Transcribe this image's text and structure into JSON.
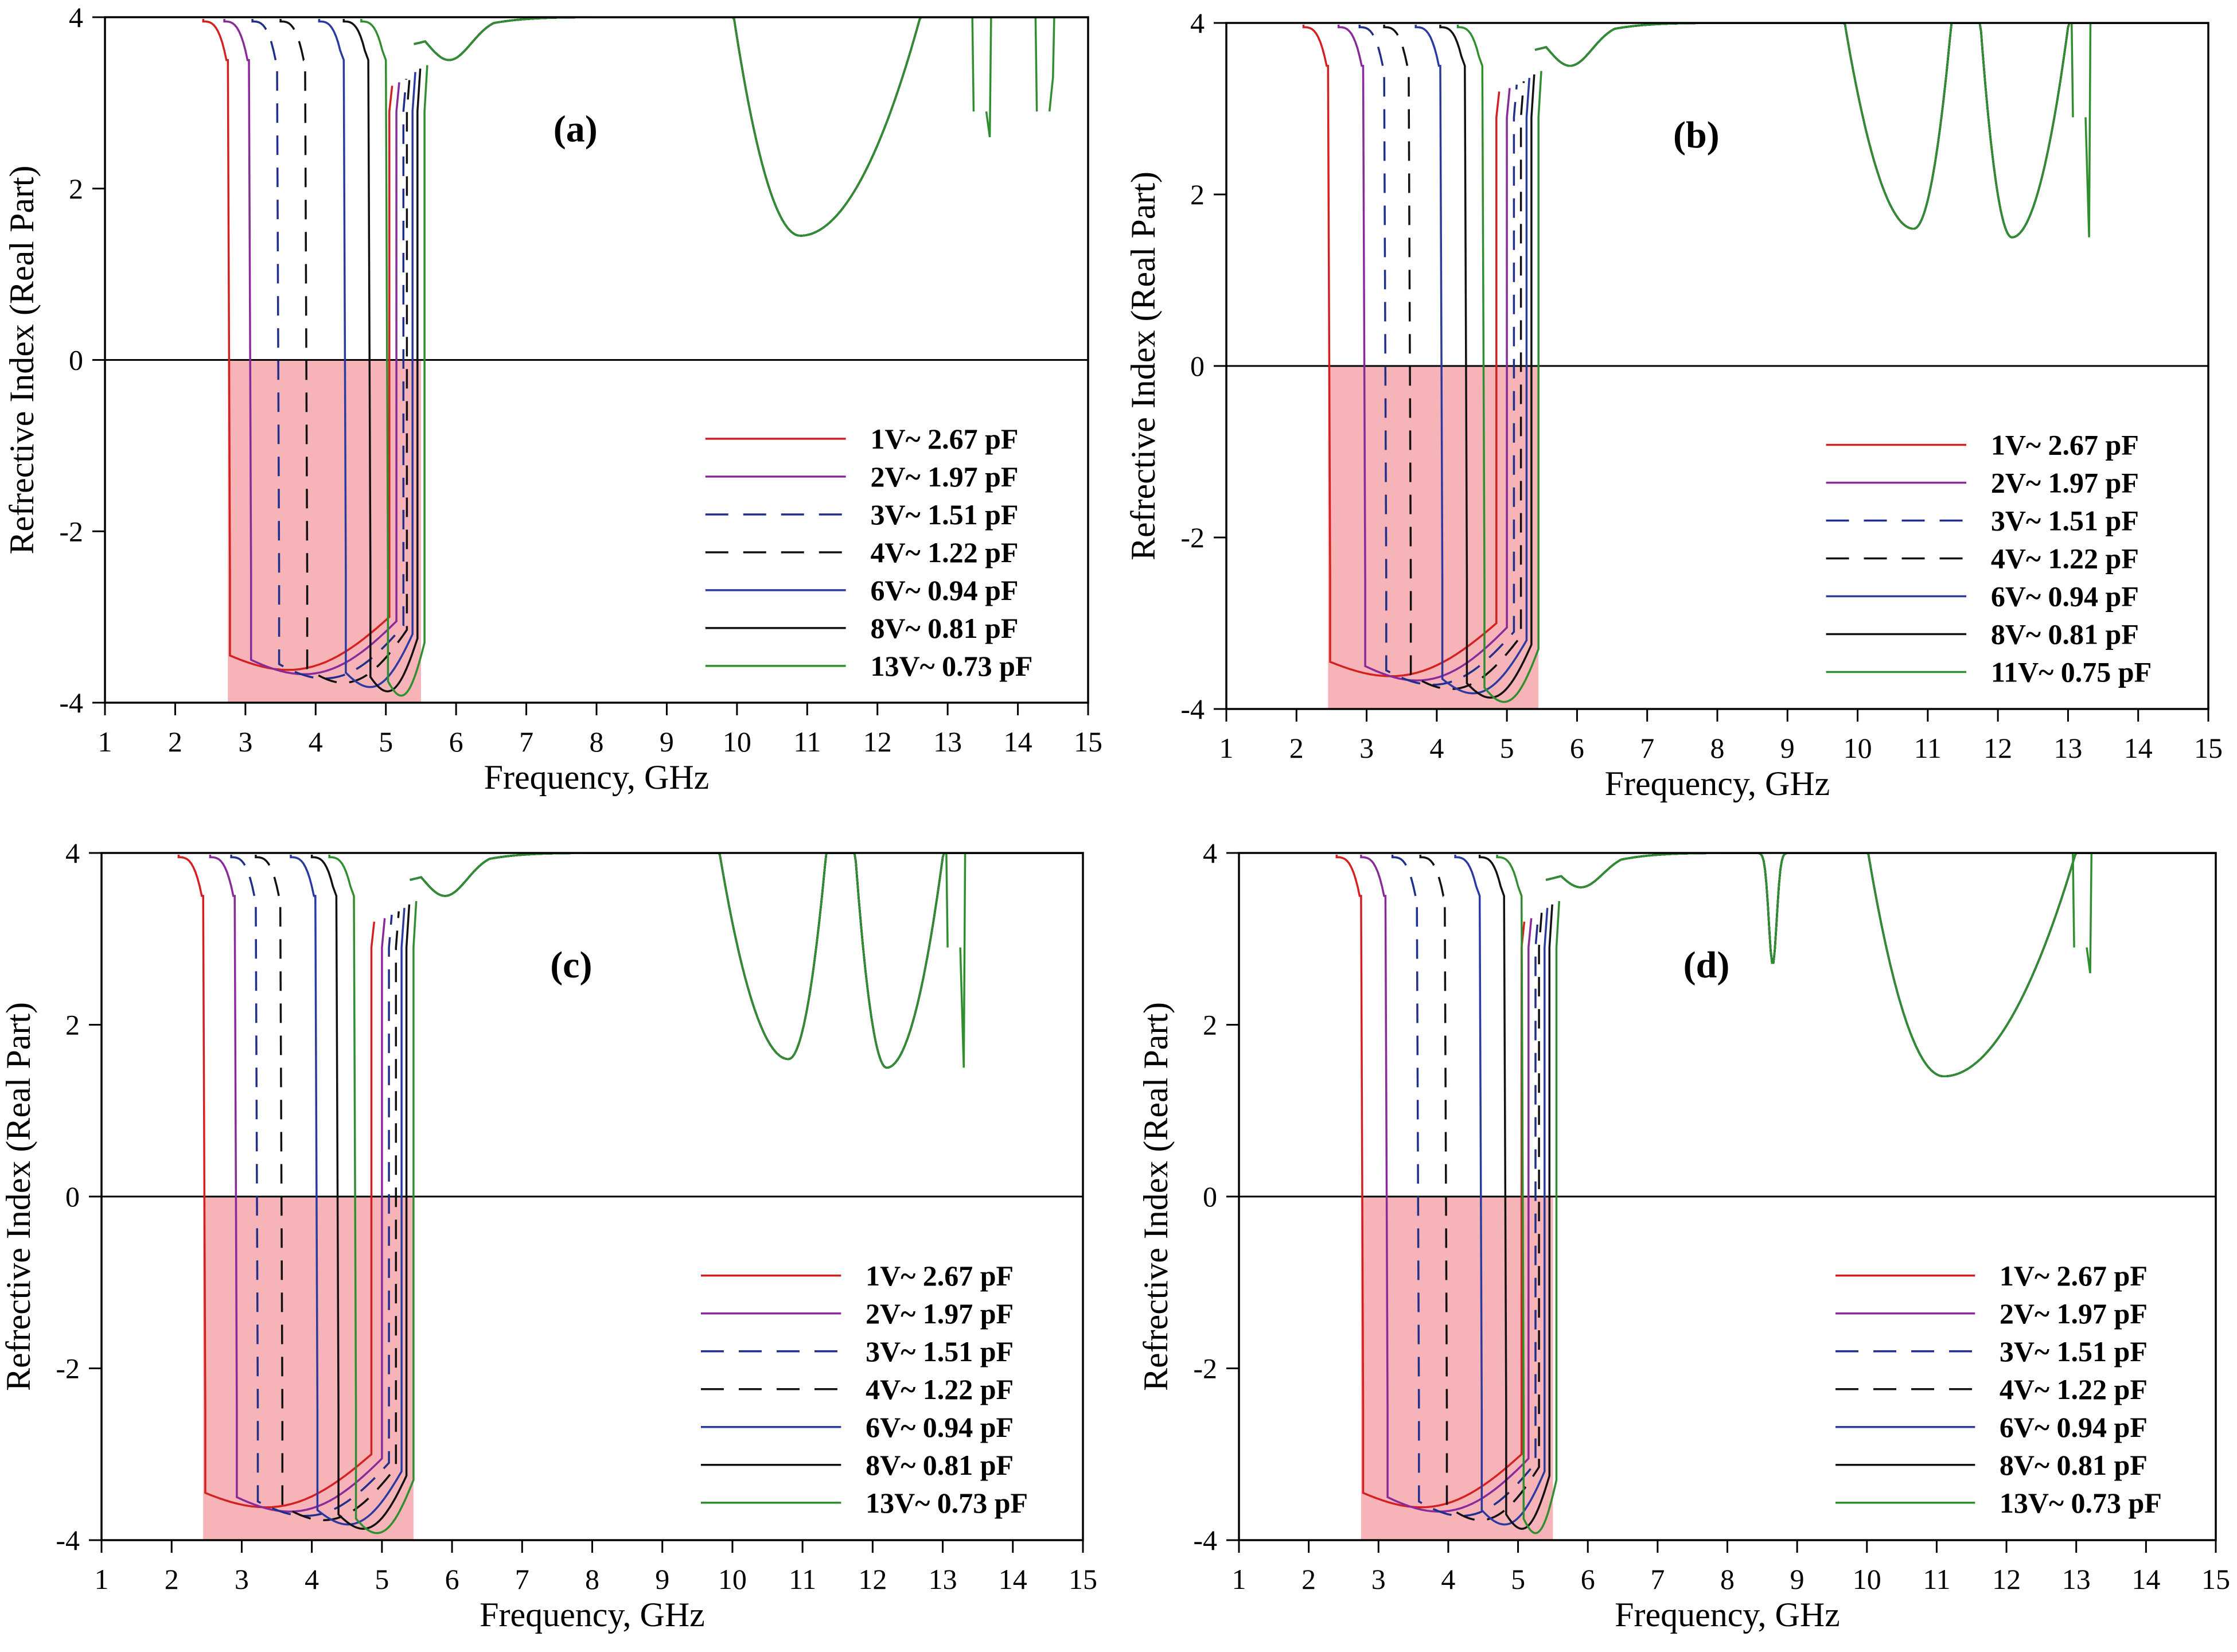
{
  "figure": {
    "legend_labels_13V": [
      "1V~ 2.67 pF",
      "2V~ 1.97 pF",
      "3V~ 1.51 pF",
      "4V~ 1.22 pF",
      "6V~ 0.94 pF",
      "8V~ 0.81 pF",
      "13V~ 0.73 pF"
    ],
    "legend_labels_11V": [
      "1V~ 2.67 pF",
      "2V~ 1.97 pF",
      "3V~ 1.51 pF",
      "4V~ 1.22 pF",
      "6V~ 0.94 pF",
      "8V~ 0.81 pF",
      "11V~ 0.75 pF"
    ],
    "series_colors": [
      "#d42020",
      "#8a2a9a",
      "#1f2f8a",
      "#111111",
      "#2a3aa0",
      "#111111",
      "#2f8f2f"
    ],
    "series_dashed": [
      false,
      false,
      true,
      true,
      false,
      false,
      false
    ]
  },
  "chart_data": [
    {
      "type": "line",
      "panel_label": "(a)",
      "xlabel": "Frequency, GHz",
      "ylabel": "Refrective Index (Real Part)",
      "xlim": [
        1,
        15
      ],
      "ylim": [
        -4,
        4
      ],
      "x_ticks": [
        "1",
        "2",
        "3",
        "4",
        "5",
        "6",
        "7",
        "8",
        "9",
        "10",
        "11",
        "12",
        "13",
        "14",
        "15"
      ],
      "y_ticks": [
        "-4",
        "-2",
        "0",
        "2",
        "4"
      ],
      "shaded_region": [
        2.75,
        5.5
      ],
      "zero_line": true,
      "legend_position": "lower-right",
      "series": [
        {
          "name": "1V~ 2.67 pF",
          "band_start": 2.75,
          "band_end": 5.05
        },
        {
          "name": "2V~ 1.97 pF",
          "band_start": 3.05,
          "band_end": 5.15
        },
        {
          "name": "3V~ 1.51 pF",
          "band_start": 3.45,
          "band_end": 5.25
        },
        {
          "name": "4V~ 1.22 pF",
          "band_start": 3.85,
          "band_end": 5.3
        },
        {
          "name": "6V~ 0.94 pF",
          "band_start": 4.4,
          "band_end": 5.38
        },
        {
          "name": "8V~ 0.81 pF",
          "band_start": 4.75,
          "band_end": 5.45
        },
        {
          "name": "13V~ 0.73 pF",
          "band_start": 5.0,
          "band_end": 5.55
        }
      ],
      "upper_features": [
        {
          "type": "bump",
          "x": 5.9,
          "y": 3.5
        },
        {
          "type": "dip",
          "x0": 9.85,
          "x1": 12.8,
          "ymin": 1.45,
          "xmin": 10.9
        },
        {
          "type": "step",
          "x": 13.6,
          "y": 2.6
        },
        {
          "type": "step",
          "x": 14.5,
          "y": 3.3
        }
      ]
    },
    {
      "type": "line",
      "panel_label": "(b)",
      "xlabel": "Frequency, GHz",
      "ylabel": "Refrective Index (Real Part)",
      "xlim": [
        1,
        15
      ],
      "ylim": [
        -4,
        4
      ],
      "x_ticks": [
        "1",
        "2",
        "3",
        "4",
        "5",
        "6",
        "7",
        "8",
        "9",
        "10",
        "11",
        "12",
        "13",
        "14",
        "15"
      ],
      "y_ticks": [
        "-4",
        "-2",
        "0",
        "2",
        "4"
      ],
      "shaded_region": [
        2.45,
        5.45
      ],
      "zero_line": true,
      "legend_position": "lower-right",
      "series": [
        {
          "name": "1V~ 2.67 pF",
          "band_start": 2.45,
          "band_end": 4.85
        },
        {
          "name": "2V~ 1.97 pF",
          "band_start": 2.95,
          "band_end": 5.0
        },
        {
          "name": "3V~ 1.51 pF",
          "band_start": 3.25,
          "band_end": 5.1
        },
        {
          "name": "4V~ 1.22 pF",
          "band_start": 3.6,
          "band_end": 5.2
        },
        {
          "name": "6V~ 0.94 pF",
          "band_start": 4.05,
          "band_end": 5.28
        },
        {
          "name": "8V~ 0.81 pF",
          "band_start": 4.4,
          "band_end": 5.35
        },
        {
          "name": "11V~ 0.75 pF",
          "band_start": 4.65,
          "band_end": 5.45
        }
      ],
      "upper_features": [
        {
          "type": "bump",
          "x": 5.9,
          "y": 3.5
        },
        {
          "type": "dip",
          "x0": 9.7,
          "x1": 11.4,
          "ymin": 1.6,
          "xmin": 10.8
        },
        {
          "type": "dip",
          "x0": 11.7,
          "x1": 13.1,
          "ymin": 1.5,
          "xmin": 12.2
        },
        {
          "type": "step",
          "x": 13.3,
          "y": 1.5
        }
      ]
    },
    {
      "type": "line",
      "panel_label": "(c)",
      "xlabel": "Frequency, GHz",
      "ylabel": "Refrective Index (Real Part)",
      "xlim": [
        1,
        15
      ],
      "ylim": [
        -4,
        4
      ],
      "x_ticks": [
        "1",
        "2",
        "3",
        "4",
        "5",
        "6",
        "7",
        "8",
        "9",
        "10",
        "11",
        "12",
        "13",
        "14",
        "15"
      ],
      "y_ticks": [
        "-4",
        "-2",
        "0",
        "2",
        "4"
      ],
      "shaded_region": [
        2.45,
        5.45
      ],
      "zero_line": true,
      "legend_position": "lower-right",
      "series": [
        {
          "name": "1V~ 2.67 pF",
          "band_start": 2.45,
          "band_end": 4.85
        },
        {
          "name": "2V~ 1.97 pF",
          "band_start": 2.9,
          "band_end": 5.0
        },
        {
          "name": "3V~ 1.51 pF",
          "band_start": 3.2,
          "band_end": 5.1
        },
        {
          "name": "4V~ 1.22 pF",
          "band_start": 3.55,
          "band_end": 5.2
        },
        {
          "name": "6V~ 0.94 pF",
          "band_start": 4.05,
          "band_end": 5.28
        },
        {
          "name": "8V~ 0.81 pF",
          "band_start": 4.35,
          "band_end": 5.35
        },
        {
          "name": "13V~ 0.73 pF",
          "band_start": 4.6,
          "band_end": 5.45
        }
      ],
      "upper_features": [
        {
          "type": "bump",
          "x": 5.9,
          "y": 3.5
        },
        {
          "type": "dip",
          "x0": 9.7,
          "x1": 11.4,
          "ymin": 1.6,
          "xmin": 10.8
        },
        {
          "type": "dip",
          "x0": 11.7,
          "x1": 13.1,
          "ymin": 1.5,
          "xmin": 12.2
        },
        {
          "type": "step",
          "x": 13.3,
          "y": 1.5
        }
      ]
    },
    {
      "type": "line",
      "panel_label": "(d)",
      "xlabel": "Frequency, GHz",
      "ylabel": "Refrective Index (Real Part)",
      "xlim": [
        1,
        15
      ],
      "ylim": [
        -4,
        4
      ],
      "x_ticks": [
        "1",
        "2",
        "3",
        "4",
        "5",
        "6",
        "7",
        "8",
        "9",
        "10",
        "11",
        "12",
        "13",
        "14",
        "15"
      ],
      "y_ticks": [
        "-4",
        "-2",
        "0",
        "2",
        "4"
      ],
      "shaded_region": [
        2.75,
        5.5
      ],
      "zero_line": true,
      "legend_position": "lower-right",
      "series": [
        {
          "name": "1V~ 2.67 pF",
          "band_start": 2.75,
          "band_end": 5.05
        },
        {
          "name": "2V~ 1.97 pF",
          "band_start": 3.1,
          "band_end": 5.15
        },
        {
          "name": "3V~ 1.51 pF",
          "band_start": 3.55,
          "band_end": 5.25
        },
        {
          "name": "4V~ 1.22 pF",
          "band_start": 3.95,
          "band_end": 5.3
        },
        {
          "name": "6V~ 0.94 pF",
          "band_start": 4.45,
          "band_end": 5.38
        },
        {
          "name": "8V~ 0.81 pF",
          "band_start": 4.8,
          "band_end": 5.45
        },
        {
          "name": "13V~ 0.73 pF",
          "band_start": 5.05,
          "band_end": 5.55
        }
      ],
      "upper_features": [
        {
          "type": "bump",
          "x": 5.9,
          "y": 3.6
        },
        {
          "type": "notch",
          "x": 8.65,
          "y": 2.7
        },
        {
          "type": "dip",
          "x0": 9.9,
          "x1": 13.2,
          "ymin": 1.4,
          "xmin": 11.1
        },
        {
          "type": "step",
          "x": 13.2,
          "y": 2.6
        }
      ]
    }
  ]
}
